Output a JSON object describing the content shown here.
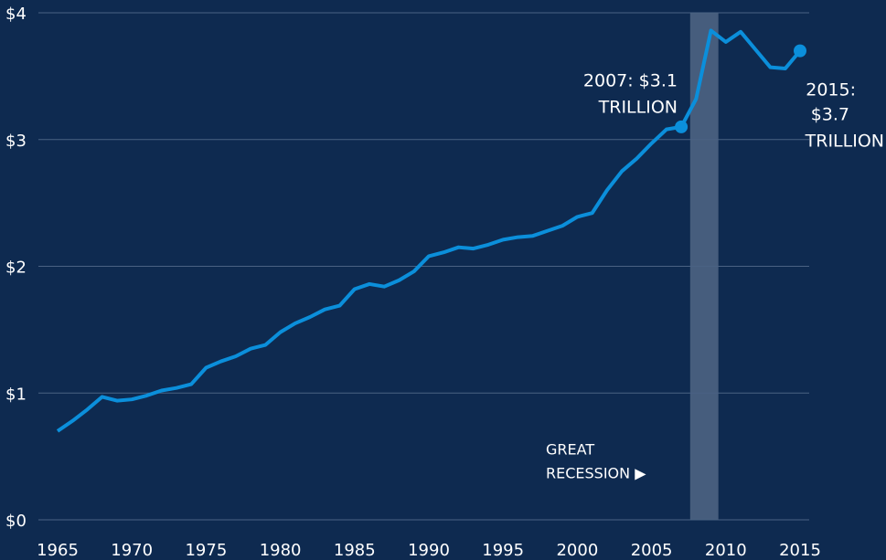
{
  "chart_data": {
    "type": "line",
    "x": [
      1965,
      1966,
      1967,
      1968,
      1969,
      1970,
      1971,
      1972,
      1973,
      1974,
      1975,
      1976,
      1977,
      1978,
      1979,
      1980,
      1981,
      1982,
      1983,
      1984,
      1985,
      1986,
      1987,
      1988,
      1989,
      1990,
      1991,
      1992,
      1993,
      1994,
      1995,
      1996,
      1997,
      1998,
      1999,
      2000,
      2001,
      2002,
      2003,
      2004,
      2005,
      2006,
      2007,
      2008,
      2009,
      2010,
      2011,
      2012,
      2013,
      2014,
      2015
    ],
    "series": [
      {
        "color": "#0b8fdb",
        "values": [
          0.7,
          0.78,
          0.87,
          0.97,
          0.94,
          0.95,
          0.98,
          1.02,
          1.04,
          1.07,
          1.2,
          1.25,
          1.29,
          1.35,
          1.38,
          1.48,
          1.55,
          1.6,
          1.66,
          1.69,
          1.82,
          1.86,
          1.84,
          1.89,
          1.96,
          2.08,
          2.11,
          2.15,
          2.14,
          2.17,
          2.21,
          2.23,
          2.24,
          2.28,
          2.32,
          2.39,
          2.42,
          2.6,
          2.75,
          2.85,
          2.97,
          3.08,
          3.1,
          3.32,
          3.86,
          3.77,
          3.85,
          3.71,
          3.57,
          3.56,
          3.7
        ]
      }
    ],
    "xlim": [
      1965,
      2015
    ],
    "xticks": [
      1965,
      1970,
      1975,
      1980,
      1985,
      1990,
      1995,
      2000,
      2005,
      2010,
      2015
    ],
    "ylim": [
      0,
      4
    ],
    "yticks": [
      {
        "value": 0,
        "label": "$0"
      },
      {
        "value": 1,
        "label": "$1"
      },
      {
        "value": 2,
        "label": "$2"
      },
      {
        "value": 3,
        "label": "$3"
      },
      {
        "value": 4,
        "label": "$4"
      }
    ],
    "grid": true,
    "shade": [
      2007.6,
      2009.5
    ],
    "highlight_x": [
      2007,
      2015
    ],
    "annotations": [
      [
        "2007: $3.1",
        "TRILLION"
      ],
      [
        "2015:",
        "$3.7",
        "TRILLION"
      ],
      [
        "GREAT",
        "RECESSION ▶"
      ]
    ]
  }
}
